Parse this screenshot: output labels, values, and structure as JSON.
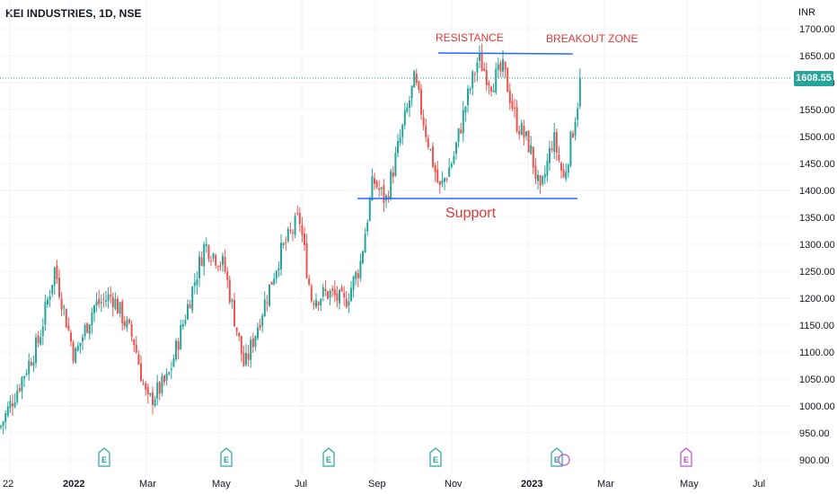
{
  "header": {
    "title": "KEI INDUSTRIES, 1D, NSE",
    "currency": "INR",
    "last_price": "1608.55"
  },
  "chart_data": {
    "type": "candlestick",
    "title": "KEI INDUSTRIES, 1D, NSE",
    "y_axis_unit": "INR",
    "ylim": [
      880,
      1720
    ],
    "y_ticks": [
      "1700.00",
      "1650.00",
      "1600.00",
      "1550.00",
      "1500.00",
      "1450.00",
      "1400.00",
      "1350.00",
      "1300.00",
      "1250.00",
      "1200.00",
      "1150.00",
      "1100.00",
      "1050.00",
      "1000.00",
      "950.00",
      "900.00"
    ],
    "x_ticks": [
      "22",
      "2022",
      "Mar",
      "May",
      "Jul",
      "Sep",
      "Nov",
      "2023",
      "Mar",
      "May",
      "Jul"
    ],
    "last_price": 1608.55,
    "close_path": [
      {
        "date": "2021-12",
        "close": 960
      },
      {
        "date": "2021-12-20",
        "close": 1120
      },
      {
        "date": "2021-12-28",
        "close": 1255
      },
      {
        "date": "2022-01-10",
        "close": 1090
      },
      {
        "date": "2022-01-25",
        "close": 1185
      },
      {
        "date": "2022-02-08",
        "close": 1205
      },
      {
        "date": "2022-02-25",
        "close": 1120
      },
      {
        "date": "2022-03-08",
        "close": 1005
      },
      {
        "date": "2022-03-25",
        "close": 1050
      },
      {
        "date": "2022-04-10",
        "close": 1180
      },
      {
        "date": "2022-04-25",
        "close": 1300
      },
      {
        "date": "2022-05-10",
        "close": 1260
      },
      {
        "date": "2022-05-25",
        "close": 1070
      },
      {
        "date": "2022-06-05",
        "close": 1160
      },
      {
        "date": "2022-06-20",
        "close": 1280
      },
      {
        "date": "2022-07-05",
        "close": 1350
      },
      {
        "date": "2022-07-15",
        "close": 1200
      },
      {
        "date": "2022-07-30",
        "close": 1210
      },
      {
        "date": "2022-08-12",
        "close": 1190
      },
      {
        "date": "2022-08-25",
        "close": 1260
      },
      {
        "date": "2022-09-05",
        "close": 1420
      },
      {
        "date": "2022-09-15",
        "close": 1380
      },
      {
        "date": "2022-09-28",
        "close": 1510
      },
      {
        "date": "2022-10-08",
        "close": 1605
      },
      {
        "date": "2022-10-18",
        "close": 1500
      },
      {
        "date": "2022-10-28",
        "close": 1400
      },
      {
        "date": "2022-11-08",
        "close": 1460
      },
      {
        "date": "2022-11-18",
        "close": 1560
      },
      {
        "date": "2022-11-28",
        "close": 1645
      },
      {
        "date": "2022-12-08",
        "close": 1600
      },
      {
        "date": "2022-12-18",
        "close": 1625
      },
      {
        "date": "2022-12-28",
        "close": 1530
      },
      {
        "date": "2023-01-08",
        "close": 1480
      },
      {
        "date": "2023-01-16",
        "close": 1390
      },
      {
        "date": "2023-01-26",
        "close": 1500
      },
      {
        "date": "2023-02-03",
        "close": 1420
      },
      {
        "date": "2023-02-10",
        "close": 1510
      },
      {
        "date": "2023-02-17",
        "close": 1608.55
      }
    ],
    "levels": [
      {
        "label": "RESISTANCE",
        "value": 1655
      },
      {
        "label": "Support",
        "value": 1385
      }
    ],
    "annotations": [
      "RESISTANCE",
      "BREAKOUT ZONE",
      "Support"
    ],
    "earnings_markers": [
      "E",
      "E",
      "E",
      "E",
      "E",
      "E"
    ],
    "grid": true
  },
  "colors": {
    "up": "#26a69a",
    "down": "#ef5350",
    "line": "#2962ff",
    "annotation": "#e03a3a",
    "earnings_past": "#26a69a",
    "earnings_future": "#c04ec9"
  }
}
